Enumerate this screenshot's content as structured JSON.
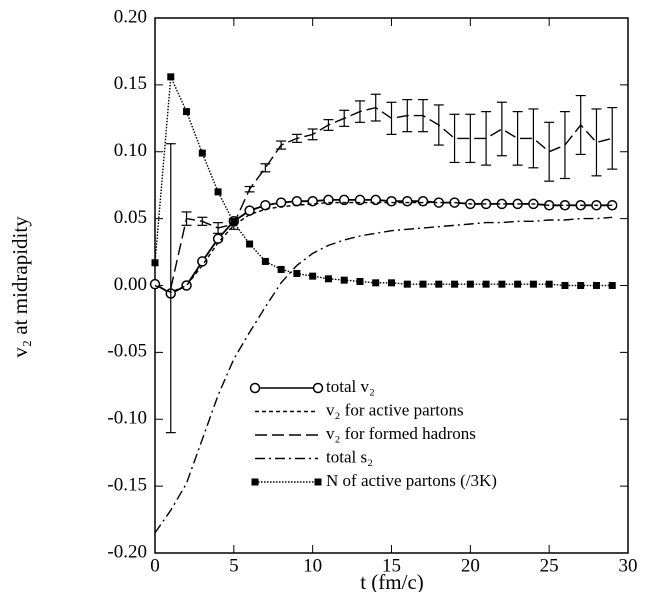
{
  "chart_data": {
    "type": "line",
    "x_label": "t (fm/c)",
    "y_label": "v₂ at midrapidity",
    "x": [
      0,
      1,
      2,
      3,
      4,
      5,
      6,
      7,
      8,
      9,
      10,
      11,
      12,
      13,
      14,
      15,
      16,
      17,
      18,
      19,
      20,
      21,
      22,
      23,
      24,
      25,
      26,
      27,
      28,
      29
    ],
    "xlim": [
      0,
      30
    ],
    "xticks": [
      0,
      5,
      10,
      15,
      20,
      25,
      30
    ],
    "ylim": [
      -0.2,
      0.2
    ],
    "yticks": [
      {
        "value": -0.2,
        "label": "-0.20"
      },
      {
        "value": -0.15,
        "label": "-0.15"
      },
      {
        "value": -0.1,
        "label": "-0.10"
      },
      {
        "value": -0.05,
        "label": "-0.05"
      },
      {
        "value": 0,
        "label": "0.00"
      },
      {
        "value": 0.05,
        "label": "0.05"
      },
      {
        "value": 0.1,
        "label": "0.10"
      },
      {
        "value": 0.15,
        "label": "0.15"
      },
      {
        "value": 0.2,
        "label": "0.20"
      }
    ],
    "series": [
      {
        "name": "total v₂",
        "color": "#000000",
        "line_style": "solid",
        "marker": "circle",
        "values": [
          0.001,
          -0.006,
          0.0,
          0.018,
          0.035,
          0.048,
          0.056,
          0.06,
          0.062,
          0.063,
          0.063,
          0.064,
          0.064,
          0.064,
          0.064,
          0.063,
          0.063,
          0.063,
          0.062,
          0.062,
          0.061,
          0.061,
          0.061,
          0.061,
          0.061,
          0.06,
          0.06,
          0.06,
          0.06,
          0.06
        ]
      },
      {
        "name": "v₂ for active partons",
        "color": "#000000",
        "line_style": "dashed",
        "marker": "none",
        "values": [
          0.0,
          -0.005,
          0.0,
          0.015,
          0.032,
          0.045,
          0.053,
          0.057,
          0.059,
          0.06,
          0.061,
          0.062,
          0.062,
          0.062,
          0.062,
          0.062,
          0.062,
          0.062,
          0.062,
          0.062,
          0.061,
          0.061,
          0.061,
          0.061,
          0.061,
          0.06,
          0.06,
          0.06,
          0.06,
          0.06
        ]
      },
      {
        "name": "v₂ for formed hadrons",
        "color": "#000000",
        "line_style": "longdash",
        "marker": "none",
        "values": [
          null,
          -0.002,
          0.05,
          0.048,
          0.043,
          0.046,
          0.072,
          0.088,
          0.105,
          0.11,
          0.113,
          0.12,
          0.125,
          0.13,
          0.133,
          0.125,
          0.127,
          0.127,
          0.12,
          0.11,
          0.11,
          0.11,
          0.117,
          0.11,
          0.11,
          0.1,
          0.105,
          0.12,
          0.107,
          0.11
        ],
        "errors": [
          null,
          0.108,
          0.005,
          0.003,
          0.004,
          0.004,
          0.002,
          0.003,
          0.003,
          0.003,
          0.004,
          0.004,
          0.006,
          0.008,
          0.01,
          0.012,
          0.012,
          0.012,
          0.015,
          0.018,
          0.018,
          0.02,
          0.02,
          0.02,
          0.022,
          0.022,
          0.025,
          0.022,
          0.025,
          0.023
        ]
      },
      {
        "name": "total s₂",
        "color": "#000000",
        "line_style": "dashdot",
        "marker": "none",
        "values": [
          -0.185,
          -0.168,
          -0.148,
          -0.115,
          -0.082,
          -0.055,
          -0.035,
          -0.016,
          0.002,
          0.015,
          0.024,
          0.03,
          0.034,
          0.037,
          0.039,
          0.041,
          0.042,
          0.043,
          0.044,
          0.045,
          0.046,
          0.047,
          0.047,
          0.048,
          0.048,
          0.049,
          0.049,
          0.05,
          0.05,
          0.051
        ]
      },
      {
        "name": "N of active partons (/3K)",
        "color": "#000000",
        "line_style": "dotted",
        "marker": "square",
        "values": [
          0.017,
          0.156,
          0.13,
          0.099,
          0.07,
          0.047,
          0.031,
          0.018,
          0.012,
          0.009,
          0.007,
          0.005,
          0.004,
          0.003,
          0.002,
          0.002,
          0.001,
          0.001,
          0.001,
          0.001,
          0.001,
          0.001,
          0.001,
          0.001,
          0.001,
          0.001,
          0.0,
          0.0,
          0.0,
          0.0
        ]
      }
    ]
  }
}
